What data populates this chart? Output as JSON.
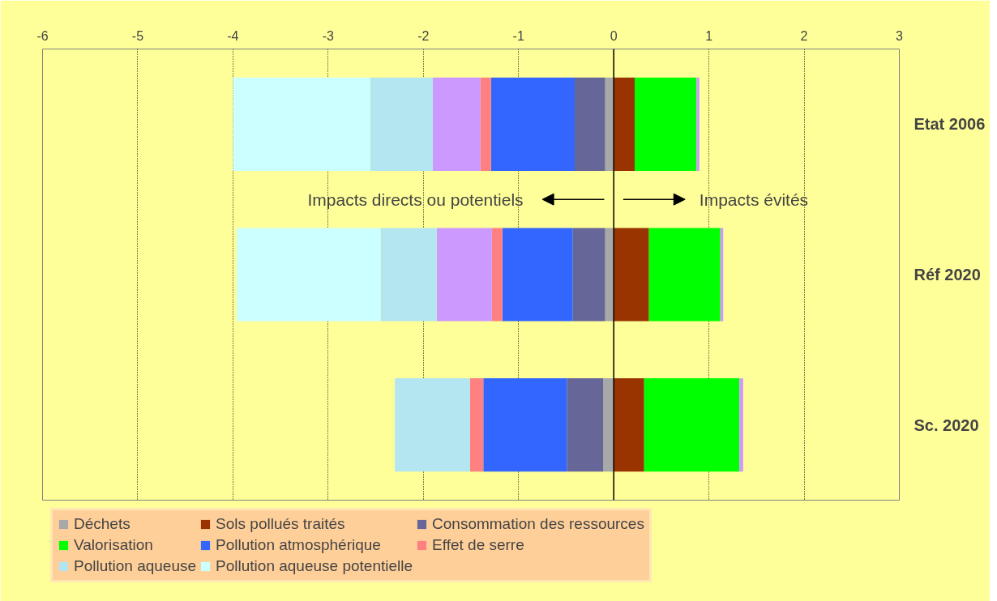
{
  "chart_data": {
    "type": "bar",
    "orientation": "horizontal",
    "stacked": true,
    "categories": [
      "Etat 2006",
      "Réf 2020",
      "Sc. 2020"
    ],
    "series": [
      {
        "name": "Déchets",
        "color": "#a8a8a8",
        "values": [
          -0.09,
          -0.09,
          -0.11
        ]
      },
      {
        "name": "Sols pollués traités",
        "color": "#993300",
        "values": [
          0.22,
          0.37,
          0.32
        ]
      },
      {
        "name": "Consommation des ressources",
        "color": "#666699",
        "values": [
          -0.32,
          -0.34,
          -0.38
        ]
      },
      {
        "name": "Valorisation",
        "color": "#00ff00",
        "values": [
          0.65,
          0.75,
          1.0
        ]
      },
      {
        "name": "Pollution atmosphérique",
        "color": "#3366ff",
        "values": [
          -0.88,
          -0.74,
          -0.88
        ]
      },
      {
        "name": "Effet de serre",
        "color": "#ff8080",
        "values": [
          -0.11,
          -0.11,
          -0.14
        ]
      },
      {
        "color": "#cc99ff",
        "values": [
          -0.5,
          -0.58,
          null
        ]
      },
      {
        "name": "Pollution aqueuse",
        "color": "#b3e6f0",
        "values": [
          -0.66,
          -0.59,
          -0.79
        ]
      },
      {
        "name": "Pollution aqueuse potentielle",
        "color": "#ccffff",
        "values": [
          -1.44,
          -1.51,
          null
        ]
      },
      {
        "color": "#cc99ff",
        "values": [
          0.03,
          0.03,
          0.04
        ]
      }
    ],
    "xlim": [
      -6,
      3
    ],
    "xticks": [
      -6,
      -5,
      -4,
      -3,
      -2,
      -1,
      0,
      1,
      2,
      3
    ],
    "grid": "x",
    "legend": "bottom",
    "annotations": [
      "Impacts directs ou potentiels",
      "Impacts évités"
    ]
  }
}
